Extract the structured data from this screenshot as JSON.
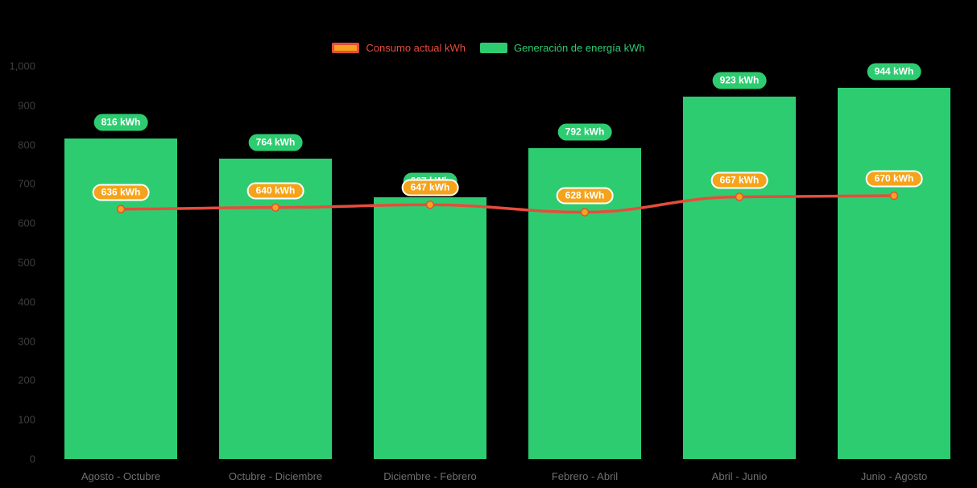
{
  "background": "#000000",
  "legend": {
    "items": [
      {
        "label": "Consumo actual kWh",
        "text_color": "#e74c3c"
      },
      {
        "label": "Generación de energía kWh",
        "text_color": "#2ecc71"
      }
    ]
  },
  "chart_data": {
    "type": "bar",
    "subtype": "bar-with-line-overlay",
    "categories": [
      "Agosto - Octubre",
      "Octubre - Diciembre",
      "Diciembre - Febrero",
      "Febrero - Abril",
      "Abril - Junio",
      "Junio - Agosto"
    ],
    "series": [
      {
        "name": "Generación de energía kWh",
        "type": "bar",
        "color": "#2ecc71",
        "values": [
          816,
          764,
          667,
          792,
          923,
          944
        ],
        "labels": [
          "816 kWh",
          "764 kWh",
          "667 kWh",
          "792 kWh",
          "923 kWh",
          "944 kWh"
        ]
      },
      {
        "name": "Consumo actual kWh",
        "type": "line",
        "line_color": "#e74c3c",
        "point_color": "#f5a31a",
        "label_border": "#ffffff",
        "values": [
          636,
          640,
          647,
          628,
          667,
          670
        ],
        "labels": [
          "636 kWh",
          "640 kWh",
          "647 kWh",
          "628 kWh",
          "667 kWh",
          "670 kWh"
        ]
      }
    ],
    "ylim": [
      0,
      1000
    ],
    "y_ticks": [
      0,
      100,
      200,
      300,
      400,
      500,
      600,
      700,
      800,
      900,
      1000
    ],
    "y_tick_labels": [
      "0",
      "100",
      "200",
      "300",
      "400",
      "500",
      "600",
      "700",
      "800",
      "900",
      "1,000"
    ],
    "xlabel": "",
    "ylabel": "",
    "title": "",
    "grid": false,
    "legend_position": "top"
  }
}
